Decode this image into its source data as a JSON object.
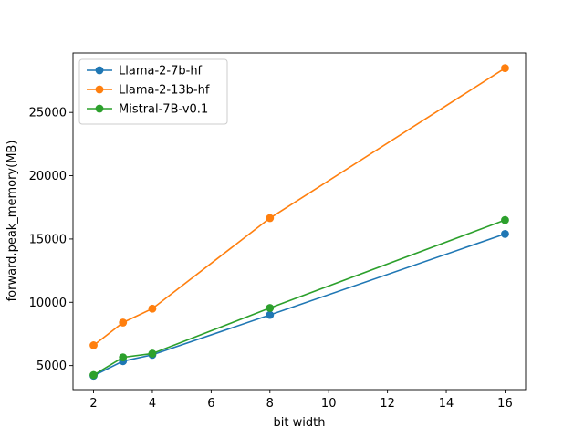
{
  "chart_data": {
    "type": "line",
    "title": "",
    "xlabel": "bit width",
    "ylabel": "forward.peak_memory(MB)",
    "xlim": [
      1.3,
      16.7
    ],
    "ylim": [
      3100,
      29700
    ],
    "xticks": [
      2,
      4,
      6,
      8,
      10,
      12,
      14,
      16
    ],
    "yticks": [
      5000,
      10000,
      15000,
      20000,
      25000
    ],
    "grid": false,
    "legend_position": "top-left",
    "x": [
      2,
      3,
      4,
      8,
      16
    ],
    "series": [
      {
        "name": "Llama-2-7b-hf",
        "color": "#1f77b4",
        "values": [
          4200,
          5350,
          5850,
          9000,
          15400
        ]
      },
      {
        "name": "Llama-2-13b-hf",
        "color": "#ff7f0e",
        "values": [
          6600,
          8400,
          9500,
          16650,
          28500
        ]
      },
      {
        "name": "Mistral-7B-v0.1",
        "color": "#2ca02c",
        "values": [
          4250,
          5650,
          5950,
          9550,
          16500
        ]
      }
    ]
  }
}
